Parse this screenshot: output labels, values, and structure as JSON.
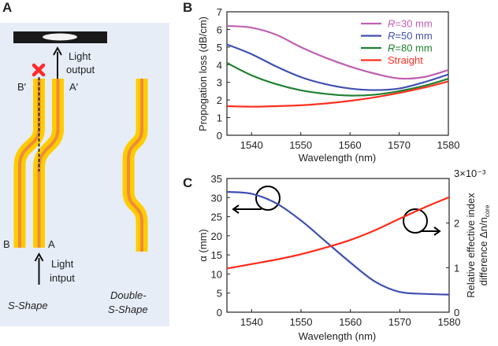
{
  "panel_a": {
    "letter": "A",
    "light_output": [
      "Light",
      "output"
    ],
    "light_input": [
      "Light",
      "intput"
    ],
    "label_b_prime": "B′",
    "label_a_prime": "A′",
    "label_b": "B",
    "label_a": "A",
    "s_shape": "S-Shape",
    "double_s_shape": [
      "Double-",
      "S-Shape"
    ],
    "colors": {
      "background": "#e6edf7",
      "cladding": "#ffcc00",
      "core": "#f08a3a",
      "blocked_mark": "#ff2a2a"
    }
  },
  "chart_data": [
    {
      "panel": "B",
      "type": "line",
      "xlabel": "Wavelength (nm)",
      "ylabel": "Propogation loss (dB/cm)",
      "xlim": [
        1535,
        1580
      ],
      "ylim": [
        0,
        7
      ],
      "xticks": [
        1540,
        1550,
        1560,
        1570,
        1580
      ],
      "yticks": [
        0,
        1,
        2,
        3,
        4,
        5,
        6,
        7
      ],
      "grid": false,
      "legend": "top-right",
      "x": [
        1535,
        1540,
        1545,
        1550,
        1555,
        1560,
        1565,
        1570,
        1575,
        1580
      ],
      "series": [
        {
          "name": "R=30 mm",
          "name_italic": "R",
          "name_rest": "=30 mm",
          "color": "#c060b0",
          "values": [
            6.2,
            6.1,
            5.7,
            5.0,
            4.4,
            3.9,
            3.5,
            3.22,
            3.3,
            3.7
          ]
        },
        {
          "name": "R=50 mm",
          "name_italic": "R",
          "name_rest": "=50 mm",
          "color": "#4050b0",
          "values": [
            5.15,
            4.6,
            3.9,
            3.3,
            2.9,
            2.65,
            2.56,
            2.65,
            3.0,
            3.45
          ]
        },
        {
          "name": "R=80 mm",
          "name_italic": "R",
          "name_rest": "=80 mm",
          "color": "#208030",
          "values": [
            4.1,
            3.4,
            2.9,
            2.55,
            2.35,
            2.25,
            2.3,
            2.5,
            2.8,
            3.2
          ]
        },
        {
          "name": "Straight",
          "name_italic": "",
          "name_rest": "Straight",
          "color": "#ff3020",
          "values": [
            1.65,
            1.62,
            1.65,
            1.7,
            1.8,
            1.95,
            2.15,
            2.4,
            2.7,
            3.05
          ]
        }
      ]
    },
    {
      "panel": "C",
      "type": "line",
      "xlabel": "Wavelength (nm)",
      "ylabel": "α (mm)",
      "y2label": [
        "Relative effective index",
        "difference Δn/n",
        "core"
      ],
      "xlim": [
        1535,
        1580
      ],
      "ylim": [
        0,
        35
      ],
      "y2lim": [
        0,
        0.003
      ],
      "xticks": [
        1540,
        1550,
        1560,
        1570,
        1580
      ],
      "yticks": [
        0,
        5,
        10,
        15,
        20,
        25,
        30,
        35
      ],
      "y2ticks": [
        "0",
        "1",
        "2",
        "3×10⁻³"
      ],
      "grid": false,
      "x": [
        1535,
        1540,
        1545,
        1550,
        1555,
        1560,
        1565,
        1570,
        1575,
        1580
      ],
      "series": [
        {
          "axis": "left",
          "color": "#4050b0",
          "values": [
            31.5,
            31,
            28.5,
            24,
            18.5,
            13,
            8,
            5.3,
            4.8,
            4.6
          ]
        },
        {
          "axis": "right",
          "color": "#ff2a1a",
          "values": [
            0.00098,
            0.00108,
            0.00118,
            0.0013,
            0.00145,
            0.00162,
            0.00184,
            0.0021,
            0.00235,
            0.00258
          ]
        }
      ]
    }
  ]
}
